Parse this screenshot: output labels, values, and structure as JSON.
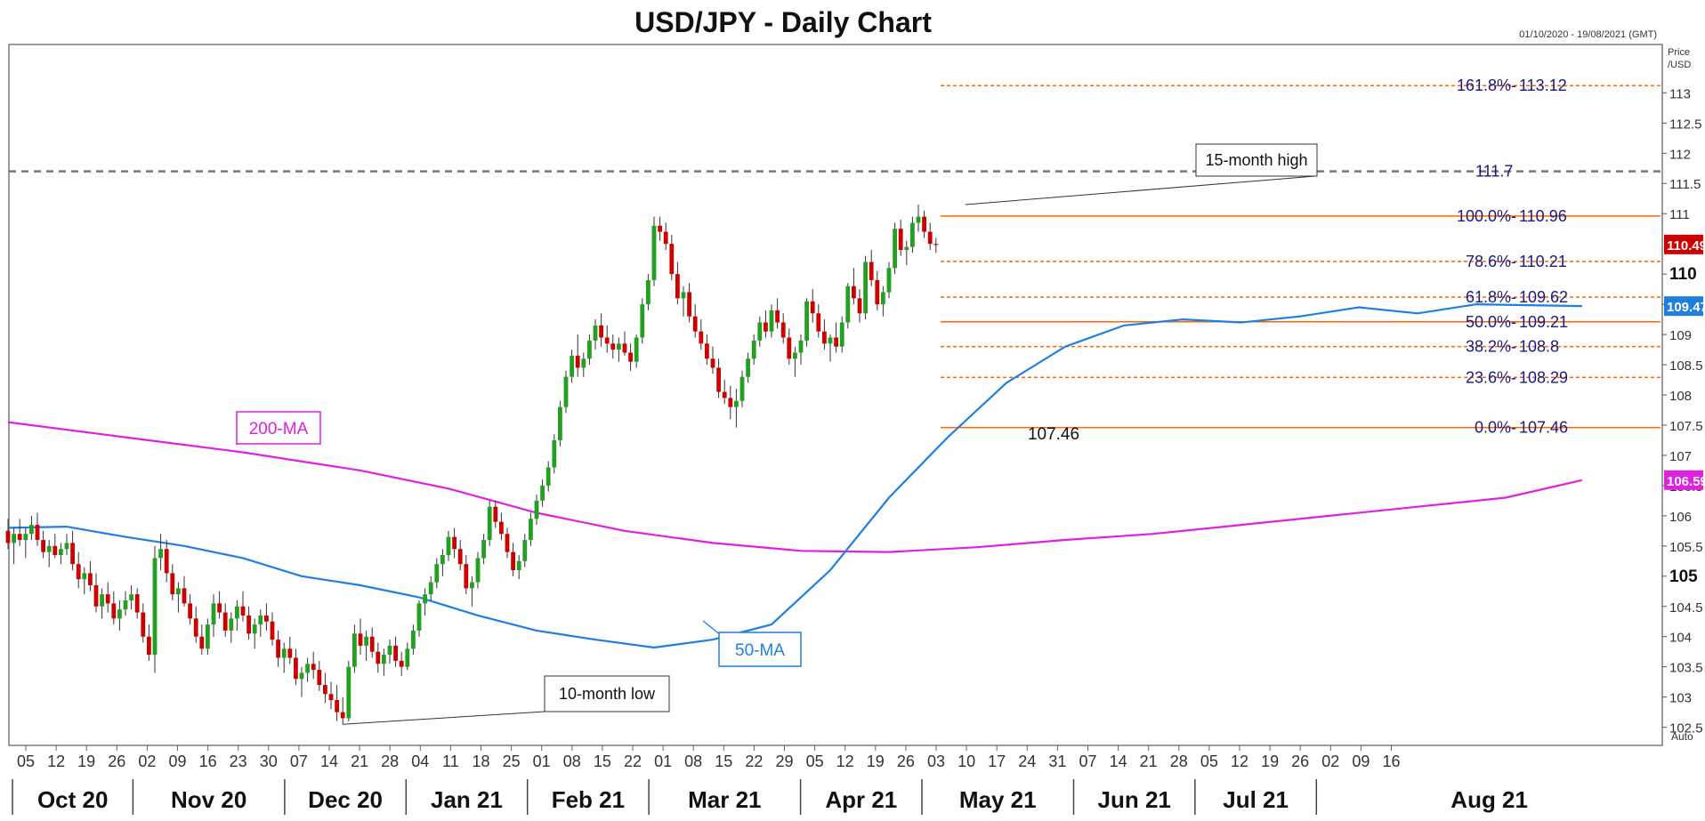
{
  "chart_data": {
    "type": "candlestick",
    "title": "USD/JPY - Daily Chart",
    "date_range": "01/10/2020 - 19/08/2021 (GMT)",
    "y_axis_label": [
      "Price",
      "/USD"
    ],
    "auto_label": "Auto",
    "ylim": [
      102.2,
      113.8
    ],
    "y_ticks": [
      {
        "v": 102.5,
        "label": "102.5"
      },
      {
        "v": 103,
        "label": "103"
      },
      {
        "v": 103.5,
        "label": "103.5"
      },
      {
        "v": 104,
        "label": "104"
      },
      {
        "v": 104.5,
        "label": "104.5"
      },
      {
        "v": 105,
        "label": "105",
        "bold": true
      },
      {
        "v": 105.5,
        "label": "105.5"
      },
      {
        "v": 106,
        "label": "106"
      },
      {
        "v": 106.5,
        "label": "106.5"
      },
      {
        "v": 107,
        "label": "107"
      },
      {
        "v": 107.5,
        "label": "107.5"
      },
      {
        "v": 108,
        "label": "108"
      },
      {
        "v": 108.5,
        "label": "108.5"
      },
      {
        "v": 109,
        "label": "109"
      },
      {
        "v": 109.5,
        "label": "109.5"
      },
      {
        "v": 110,
        "label": "110",
        "bold": true
      },
      {
        "v": 111,
        "label": "111"
      },
      {
        "v": 111.5,
        "label": "111.5"
      },
      {
        "v": 112,
        "label": "112"
      },
      {
        "v": 112.5,
        "label": "112.5"
      },
      {
        "v": 113,
        "label": "113"
      }
    ],
    "x_day_ticks": [
      "05",
      "12",
      "19",
      "26",
      "02",
      "09",
      "16",
      "23",
      "30",
      "07",
      "14",
      "21",
      "28",
      "04",
      "11",
      "18",
      "25",
      "01",
      "08",
      "15",
      "22",
      "01",
      "08",
      "15",
      "22",
      "29",
      "05",
      "12",
      "19",
      "26",
      "03",
      "10",
      "17",
      "24",
      "31",
      "07",
      "14",
      "21",
      "28",
      "05",
      "12",
      "19",
      "26",
      "02",
      "09",
      "16"
    ],
    "x_months": [
      "Oct 20",
      "Nov 20",
      "Dec 20",
      "Jan 21",
      "Feb 21",
      "Mar 21",
      "Apr 21",
      "May 21",
      "Jun 21",
      "Jul 21",
      "Aug 21"
    ],
    "price_badges": [
      {
        "label": "110.49",
        "value": 110.49,
        "color": "#cc0000"
      },
      {
        "label": "109.47",
        "value": 109.47,
        "color": "#1e7fe0"
      },
      {
        "label": "106.59",
        "value": 106.59,
        "color": "#e020e0"
      }
    ],
    "fibonacci": [
      {
        "pct": "161.8%",
        "value": "113.12",
        "price": 113.12,
        "style": "dashed"
      },
      {
        "pct": "100.0%",
        "value": "110.96",
        "price": 110.96,
        "style": "solid"
      },
      {
        "pct": "78.6%",
        "value": "110.21",
        "price": 110.21,
        "style": "dashed"
      },
      {
        "pct": "61.8%",
        "value": "109.62",
        "price": 109.62,
        "style": "dashed"
      },
      {
        "pct": "50.0%",
        "value": "109.21",
        "price": 109.21,
        "style": "solid"
      },
      {
        "pct": "38.2%",
        "value": "108.8",
        "price": 108.8,
        "style": "dashed"
      },
      {
        "pct": "23.6%",
        "value": "108.29",
        "price": 108.29,
        "style": "dashed"
      },
      {
        "pct": "0.0%",
        "value": "107.46",
        "price": 107.46,
        "style": "solid"
      }
    ],
    "resistance": {
      "label": "111.7",
      "value": 111.7
    },
    "annotations": {
      "high": "15-month high",
      "low": "10-month low",
      "low_price": "107.46",
      "ma200": "200-MA",
      "ma50": "50-MA"
    },
    "colors": {
      "up": "#22a022",
      "down": "#cc0000",
      "ma50": "#1e7fe0",
      "ma200": "#e020e0",
      "fib": "#ff6600",
      "fib_text": "#1a1a80"
    },
    "ma200_points": [
      [
        0,
        107.55
      ],
      [
        20,
        107.3
      ],
      [
        40,
        107.05
      ],
      [
        60,
        106.75
      ],
      [
        75,
        106.45
      ],
      [
        90,
        106.05
      ],
      [
        105,
        105.75
      ],
      [
        120,
        105.55
      ],
      [
        135,
        105.42
      ],
      [
        150,
        105.4
      ],
      [
        165,
        105.48
      ],
      [
        180,
        105.6
      ],
      [
        195,
        105.7
      ],
      [
        210,
        105.85
      ],
      [
        225,
        106.0
      ],
      [
        240,
        106.15
      ],
      [
        255,
        106.3
      ],
      [
        268,
        106.59
      ]
    ],
    "ma50_points": [
      [
        0,
        105.8
      ],
      [
        10,
        105.82
      ],
      [
        20,
        105.65
      ],
      [
        30,
        105.5
      ],
      [
        40,
        105.3
      ],
      [
        50,
        105.0
      ],
      [
        60,
        104.85
      ],
      [
        70,
        104.65
      ],
      [
        80,
        104.35
      ],
      [
        90,
        104.1
      ],
      [
        100,
        103.95
      ],
      [
        110,
        103.82
      ],
      [
        120,
        103.95
      ],
      [
        130,
        104.2
      ],
      [
        140,
        105.1
      ],
      [
        150,
        106.3
      ],
      [
        160,
        107.3
      ],
      [
        170,
        108.2
      ],
      [
        180,
        108.8
      ],
      [
        190,
        109.15
      ],
      [
        200,
        109.25
      ],
      [
        210,
        109.2
      ],
      [
        220,
        109.3
      ],
      [
        230,
        109.45
      ],
      [
        240,
        109.35
      ],
      [
        250,
        109.5
      ],
      [
        268,
        109.47
      ]
    ],
    "candles": [
      [
        105.75,
        105.95,
        105.45,
        105.55
      ],
      [
        105.55,
        105.8,
        105.2,
        105.7
      ],
      [
        105.7,
        105.95,
        105.5,
        105.6
      ],
      [
        105.6,
        105.8,
        105.3,
        105.7
      ],
      [
        105.7,
        106.0,
        105.6,
        105.85
      ],
      [
        105.85,
        106.05,
        105.5,
        105.6
      ],
      [
        105.6,
        105.75,
        105.3,
        105.4
      ],
      [
        105.4,
        105.6,
        105.15,
        105.5
      ],
      [
        105.5,
        105.7,
        105.3,
        105.35
      ],
      [
        105.35,
        105.55,
        105.2,
        105.45
      ],
      [
        105.45,
        105.7,
        105.35,
        105.55
      ],
      [
        105.55,
        105.75,
        105.1,
        105.2
      ],
      [
        105.2,
        105.4,
        104.8,
        104.95
      ],
      [
        104.95,
        105.15,
        104.7,
        105.05
      ],
      [
        105.05,
        105.25,
        104.75,
        104.85
      ],
      [
        104.85,
        105.05,
        104.4,
        104.5
      ],
      [
        104.5,
        104.8,
        104.3,
        104.7
      ],
      [
        104.7,
        104.9,
        104.4,
        104.55
      ],
      [
        104.55,
        104.75,
        104.2,
        104.3
      ],
      [
        104.3,
        104.6,
        104.1,
        104.45
      ],
      [
        104.45,
        104.75,
        104.35,
        104.6
      ],
      [
        104.6,
        104.85,
        104.45,
        104.7
      ],
      [
        104.7,
        104.8,
        104.3,
        104.4
      ],
      [
        104.4,
        104.55,
        103.9,
        104.0
      ],
      [
        104.0,
        104.2,
        103.6,
        103.7
      ],
      [
        103.7,
        105.5,
        103.4,
        105.3
      ],
      [
        105.3,
        105.7,
        105.1,
        105.45
      ],
      [
        105.45,
        105.6,
        104.9,
        105.05
      ],
      [
        105.05,
        105.2,
        104.6,
        104.7
      ],
      [
        104.7,
        104.9,
        104.4,
        104.8
      ],
      [
        104.8,
        105.0,
        104.5,
        104.55
      ],
      [
        104.55,
        104.7,
        104.2,
        104.3
      ],
      [
        104.3,
        104.5,
        103.9,
        104.0
      ],
      [
        104.0,
        104.2,
        103.7,
        103.8
      ],
      [
        103.8,
        104.3,
        103.7,
        104.2
      ],
      [
        104.2,
        104.7,
        104.0,
        104.55
      ],
      [
        104.55,
        104.75,
        104.3,
        104.4
      ],
      [
        104.4,
        104.55,
        104.0,
        104.1
      ],
      [
        104.1,
        104.4,
        103.9,
        104.3
      ],
      [
        104.3,
        104.6,
        104.1,
        104.5
      ],
      [
        104.5,
        104.75,
        104.25,
        104.35
      ],
      [
        104.35,
        104.5,
        103.95,
        104.05
      ],
      [
        104.05,
        104.3,
        103.8,
        104.2
      ],
      [
        104.2,
        104.45,
        104.0,
        104.35
      ],
      [
        104.35,
        104.55,
        104.1,
        104.25
      ],
      [
        104.25,
        104.4,
        103.85,
        103.95
      ],
      [
        103.95,
        104.1,
        103.5,
        103.65
      ],
      [
        103.65,
        103.9,
        103.4,
        103.8
      ],
      [
        103.8,
        104.0,
        103.55,
        103.65
      ],
      [
        103.65,
        103.8,
        103.2,
        103.3
      ],
      [
        103.3,
        103.5,
        103.0,
        103.4
      ],
      [
        103.4,
        103.65,
        103.25,
        103.55
      ],
      [
        103.55,
        103.75,
        103.3,
        103.45
      ],
      [
        103.45,
        103.6,
        103.1,
        103.2
      ],
      [
        103.2,
        103.4,
        102.9,
        103.05
      ],
      [
        103.05,
        103.25,
        102.8,
        102.95
      ],
      [
        102.95,
        103.2,
        102.6,
        102.75
      ],
      [
        102.75,
        103.0,
        102.55,
        102.65
      ],
      [
        102.65,
        103.6,
        102.6,
        103.5
      ],
      [
        103.5,
        104.2,
        103.4,
        104.05
      ],
      [
        104.05,
        104.3,
        103.7,
        103.85
      ],
      [
        103.85,
        104.1,
        103.6,
        104.0
      ],
      [
        104.0,
        104.15,
        103.65,
        103.75
      ],
      [
        103.75,
        103.9,
        103.4,
        103.55
      ],
      [
        103.55,
        103.8,
        103.35,
        103.7
      ],
      [
        103.7,
        103.95,
        103.55,
        103.85
      ],
      [
        103.85,
        104.0,
        103.5,
        103.6
      ],
      [
        103.6,
        103.75,
        103.35,
        103.5
      ],
      [
        103.5,
        103.9,
        103.45,
        103.8
      ],
      [
        103.8,
        104.2,
        103.7,
        104.1
      ],
      [
        104.1,
        104.6,
        104.0,
        104.55
      ],
      [
        104.55,
        104.8,
        104.35,
        104.7
      ],
      [
        104.7,
        105.0,
        104.6,
        104.9
      ],
      [
        104.9,
        105.3,
        104.8,
        105.2
      ],
      [
        105.2,
        105.45,
        105.0,
        105.35
      ],
      [
        105.35,
        105.75,
        105.25,
        105.65
      ],
      [
        105.65,
        105.8,
        105.3,
        105.45
      ],
      [
        105.45,
        105.6,
        105.1,
        105.2
      ],
      [
        105.2,
        105.35,
        104.7,
        104.8
      ],
      [
        104.8,
        105.0,
        104.5,
        104.9
      ],
      [
        104.9,
        105.4,
        104.8,
        105.3
      ],
      [
        105.3,
        105.7,
        105.2,
        105.6
      ],
      [
        105.6,
        106.25,
        105.5,
        106.15
      ],
      [
        106.15,
        106.25,
        105.8,
        105.9
      ],
      [
        105.9,
        106.05,
        105.6,
        105.7
      ],
      [
        105.7,
        105.8,
        105.3,
        105.4
      ],
      [
        105.4,
        105.55,
        105.0,
        105.1
      ],
      [
        105.1,
        105.35,
        104.95,
        105.25
      ],
      [
        105.25,
        105.7,
        105.15,
        105.6
      ],
      [
        105.6,
        106.05,
        105.5,
        105.95
      ],
      [
        105.95,
        106.35,
        105.85,
        106.25
      ],
      [
        106.25,
        106.6,
        106.15,
        106.5
      ],
      [
        106.5,
        106.9,
        106.4,
        106.8
      ],
      [
        106.8,
        107.35,
        106.7,
        107.25
      ],
      [
        107.25,
        107.9,
        107.15,
        107.8
      ],
      [
        107.8,
        108.4,
        107.7,
        108.3
      ],
      [
        108.3,
        108.75,
        108.2,
        108.65
      ],
      [
        108.65,
        109.0,
        108.3,
        108.45
      ],
      [
        108.45,
        108.7,
        108.3,
        108.6
      ],
      [
        108.6,
        109.0,
        108.5,
        108.9
      ],
      [
        108.9,
        109.25,
        108.75,
        109.15
      ],
      [
        109.15,
        109.35,
        108.8,
        108.95
      ],
      [
        108.95,
        109.15,
        108.7,
        108.85
      ],
      [
        108.85,
        109.0,
        108.6,
        108.75
      ],
      [
        108.75,
        108.95,
        108.55,
        108.85
      ],
      [
        108.85,
        109.05,
        108.65,
        108.7
      ],
      [
        108.7,
        108.85,
        108.4,
        108.55
      ],
      [
        108.55,
        109.0,
        108.45,
        108.95
      ],
      [
        108.95,
        109.6,
        108.85,
        109.5
      ],
      [
        109.5,
        110.0,
        109.4,
        109.9
      ],
      [
        109.9,
        110.95,
        109.8,
        110.8
      ],
      [
        110.8,
        110.95,
        110.55,
        110.7
      ],
      [
        110.7,
        110.85,
        110.4,
        110.5
      ],
      [
        110.5,
        110.65,
        109.9,
        110.0
      ],
      [
        110.0,
        110.2,
        109.5,
        109.6
      ],
      [
        109.6,
        109.8,
        109.3,
        109.7
      ],
      [
        109.7,
        109.85,
        109.2,
        109.3
      ],
      [
        109.3,
        109.5,
        108.95,
        109.05
      ],
      [
        109.05,
        109.25,
        108.75,
        108.85
      ],
      [
        108.85,
        109.0,
        108.5,
        108.6
      ],
      [
        108.6,
        108.8,
        108.35,
        108.45
      ],
      [
        108.45,
        108.6,
        107.95,
        108.05
      ],
      [
        108.05,
        108.25,
        107.85,
        107.95
      ],
      [
        107.95,
        108.15,
        107.6,
        107.8
      ],
      [
        107.8,
        108.1,
        107.46,
        107.9
      ],
      [
        107.9,
        108.4,
        107.8,
        108.3
      ],
      [
        108.3,
        108.7,
        108.2,
        108.6
      ],
      [
        108.6,
        109.0,
        108.5,
        108.9
      ],
      [
        108.9,
        109.3,
        108.8,
        109.2
      ],
      [
        109.2,
        109.4,
        108.95,
        109.05
      ],
      [
        109.05,
        109.5,
        108.95,
        109.4
      ],
      [
        109.4,
        109.6,
        109.1,
        109.2
      ],
      [
        109.2,
        109.35,
        108.85,
        108.95
      ],
      [
        108.95,
        109.1,
        108.5,
        108.6
      ],
      [
        108.6,
        108.8,
        108.3,
        108.7
      ],
      [
        108.7,
        109.0,
        108.5,
        108.9
      ],
      [
        108.9,
        109.6,
        108.8,
        109.55
      ],
      [
        109.55,
        109.75,
        109.2,
        109.35
      ],
      [
        109.35,
        109.5,
        108.95,
        109.05
      ],
      [
        109.05,
        109.25,
        108.75,
        108.85
      ],
      [
        108.85,
        109.0,
        108.55,
        108.95
      ],
      [
        108.95,
        109.2,
        108.7,
        108.8
      ],
      [
        108.8,
        109.3,
        108.7,
        109.2
      ],
      [
        109.2,
        109.85,
        109.1,
        109.8
      ],
      [
        109.8,
        110.1,
        109.5,
        109.6
      ],
      [
        109.6,
        109.75,
        109.2,
        109.35
      ],
      [
        109.35,
        110.3,
        109.25,
        110.2
      ],
      [
        110.2,
        110.4,
        109.8,
        109.9
      ],
      [
        109.9,
        110.05,
        109.4,
        109.5
      ],
      [
        109.5,
        109.8,
        109.3,
        109.7
      ],
      [
        109.7,
        110.2,
        109.6,
        110.1
      ],
      [
        110.1,
        110.85,
        110.0,
        110.75
      ],
      [
        110.75,
        110.9,
        110.3,
        110.4
      ],
      [
        110.4,
        110.55,
        110.15,
        110.45
      ],
      [
        110.45,
        110.95,
        110.35,
        110.85
      ],
      [
        110.85,
        111.15,
        110.7,
        110.95
      ],
      [
        110.95,
        111.05,
        110.6,
        110.7
      ],
      [
        110.7,
        110.85,
        110.4,
        110.5
      ],
      [
        110.5,
        110.6,
        110.35,
        110.49
      ]
    ]
  }
}
